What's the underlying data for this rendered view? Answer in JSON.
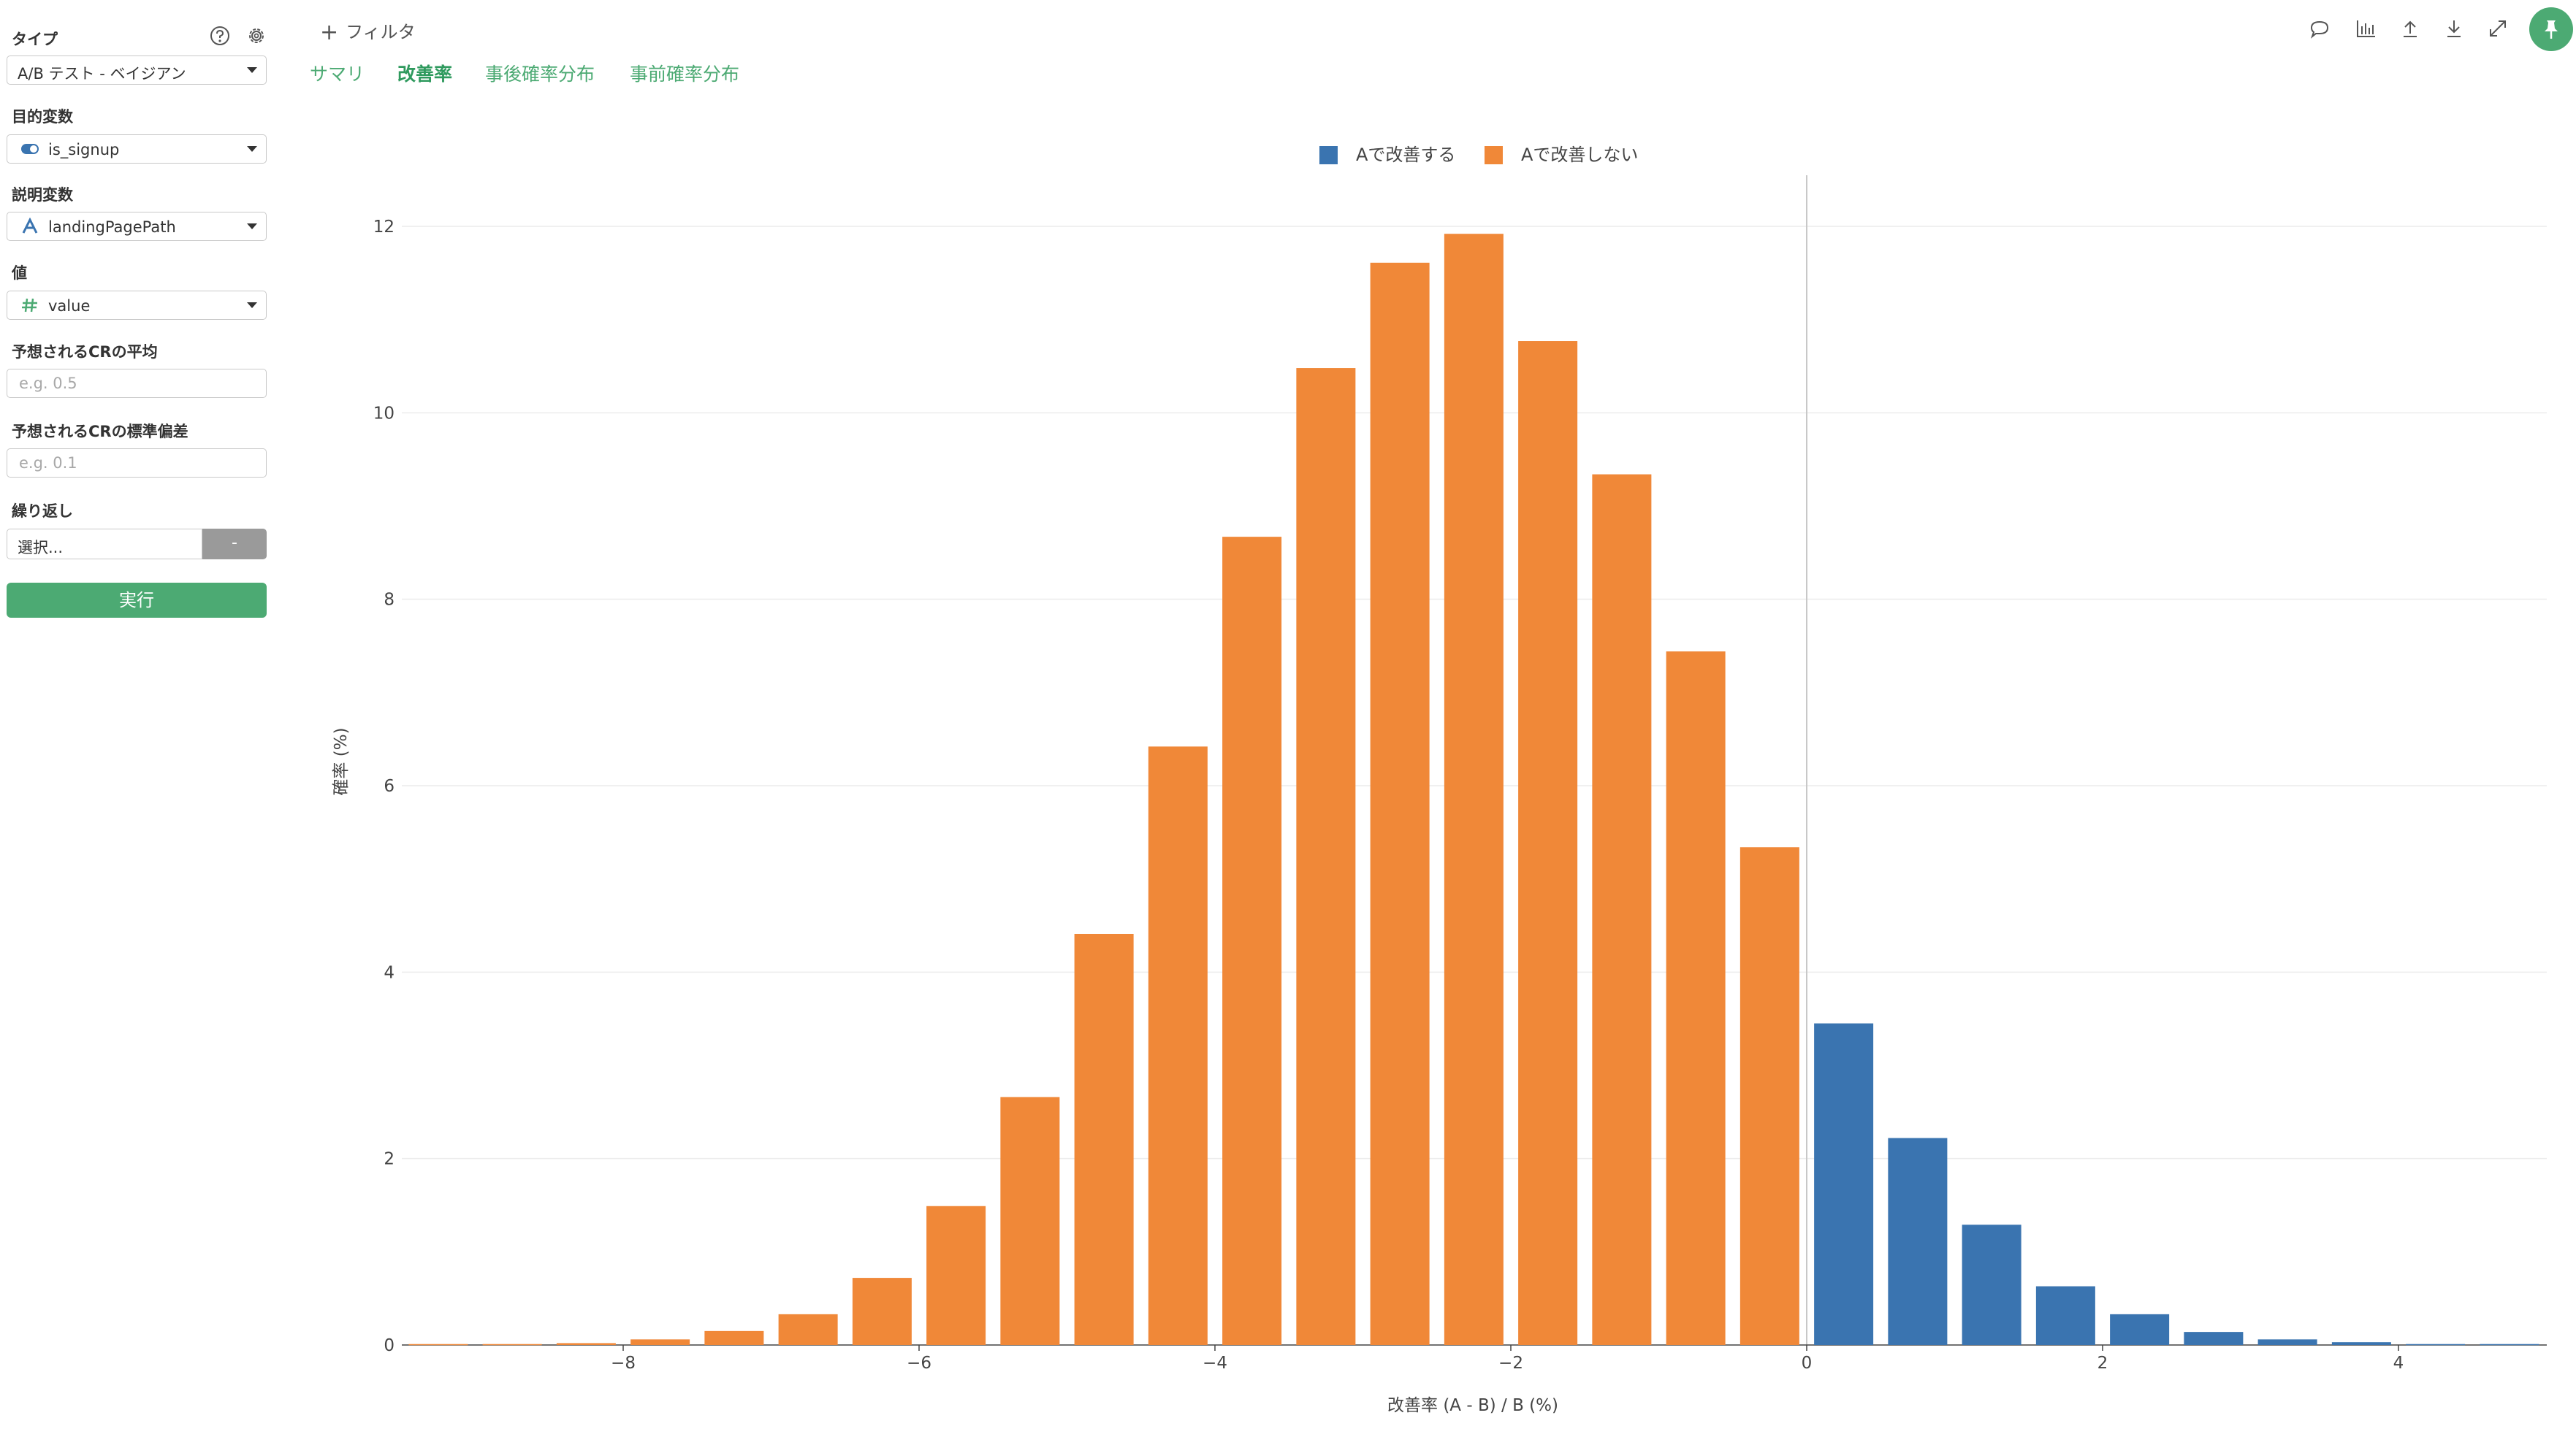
{
  "sidebar": {
    "type_label": "タイプ",
    "type_value": "A/B テスト - ベイジアン",
    "target_label": "目的変数",
    "target_value": "is_signup",
    "explanatory_label": "説明変数",
    "explanatory_value": "landingPagePath",
    "value_label": "値",
    "value_value": "value",
    "cr_mean_label": "予想されるCRの平均",
    "cr_mean_placeholder": "e.g. 0.5",
    "cr_sd_label": "予想されるCRの標準偏差",
    "cr_sd_placeholder": "e.g. 0.1",
    "repeat_label": "繰り返し",
    "repeat_value": "選択...",
    "repeat_toggle": "-",
    "run_label": "実行",
    "icons": {
      "help": "help-icon",
      "settings": "gear-icon",
      "target_type": "toggle-icon",
      "explanatory_type": "text-type-icon",
      "value_type": "hash-icon"
    }
  },
  "header": {
    "filter_label": "フィルタ",
    "tabs": [
      {
        "label": "サマリ",
        "active": false
      },
      {
        "label": "改善率",
        "active": true
      },
      {
        "label": "事後確率分布",
        "active": false
      },
      {
        "label": "事前確率分布",
        "active": false
      }
    ],
    "toolbar_icons": [
      "comment-icon",
      "chart-icon",
      "upload-icon",
      "download-icon",
      "expand-icon",
      "pin-icon"
    ]
  },
  "colors": {
    "accent": "#4caa73",
    "improve": "#3a74b0",
    "not_improve": "#f08838"
  },
  "chart_data": {
    "type": "bar",
    "xlabel": "改善率 (A - B) / B (%)",
    "ylabel": "確率 (%)",
    "xlim": [
      -9.55,
      5
    ],
    "ylim": [
      0,
      12.5
    ],
    "xticks": [
      -8,
      -6,
      -4,
      -2,
      0,
      2,
      4
    ],
    "yticks": [
      0,
      2,
      4,
      6,
      8,
      10,
      12
    ],
    "bin_width": 0.5,
    "legend_position": "top-center",
    "grid": true,
    "series": [
      {
        "name": "Aで改善する",
        "color": "#3a74b0",
        "x": [
          0.25,
          0.75,
          1.25,
          1.75,
          2.25,
          2.75,
          3.25,
          3.75,
          4.25,
          4.75
        ],
        "values": [
          3.45,
          2.22,
          1.29,
          0.63,
          0.33,
          0.14,
          0.06,
          0.03,
          0.01,
          0.01
        ]
      },
      {
        "name": "Aで改善しない",
        "color": "#f08838",
        "x": [
          -9.25,
          -8.75,
          -8.25,
          -7.75,
          -7.25,
          -6.75,
          -6.25,
          -5.75,
          -5.25,
          -4.75,
          -4.25,
          -3.75,
          -3.25,
          -2.75,
          -2.25,
          -1.75,
          -1.25,
          -0.75,
          -0.25
        ],
        "values": [
          0.01,
          0.01,
          0.02,
          0.06,
          0.15,
          0.33,
          0.72,
          1.49,
          2.66,
          4.41,
          6.42,
          8.67,
          10.48,
          11.61,
          11.92,
          10.77,
          9.34,
          7.44,
          5.34
        ]
      }
    ]
  }
}
